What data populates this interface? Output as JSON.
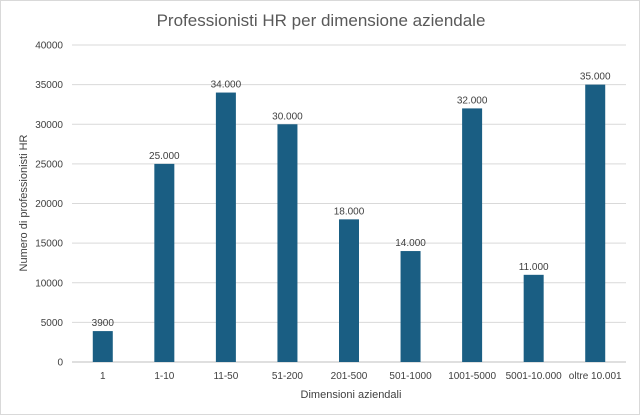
{
  "chart_data": {
    "type": "bar",
    "title": "Professionisti HR per dimensione aziendale",
    "xlabel": "Dimensioni aziendali",
    "ylabel": "Numero di professionisti HR",
    "categories": [
      "1",
      "1-10",
      "11-50",
      "51-200",
      "201-500",
      "501-1000",
      "1001-5000",
      "5001-10.000",
      "oltre 10.001"
    ],
    "values": [
      3900,
      25000,
      34000,
      30000,
      18000,
      14000,
      32000,
      11000,
      35000
    ],
    "data_labels": [
      "3900",
      "25.000",
      "34.000",
      "30.000",
      "18.000",
      "14.000",
      "32.000",
      "11.000",
      "35.000"
    ],
    "ylim": [
      0,
      40000
    ],
    "yticks": [
      0,
      5000,
      10000,
      15000,
      20000,
      25000,
      30000,
      35000,
      40000
    ],
    "ytick_labels": [
      "0",
      "5000",
      "10000",
      "15000",
      "20000",
      "25000",
      "30000",
      "35000",
      "40000"
    ],
    "grid": true,
    "bar_color": "#1a5e83"
  }
}
